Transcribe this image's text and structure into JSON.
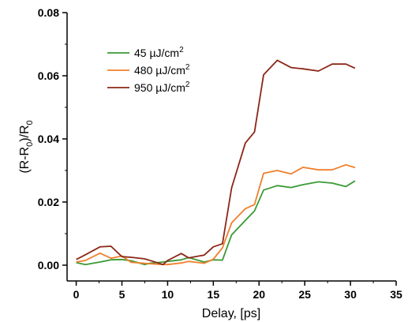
{
  "chart_data": {
    "type": "line",
    "xlabel": "Delay, [ps]",
    "ylabel": {
      "parts": [
        "(R-R",
        "0",
        ")/R",
        "0"
      ]
    },
    "xlim": [
      -1,
      35
    ],
    "ylim": [
      -0.005,
      0.08
    ],
    "xticks": [
      0,
      5,
      10,
      15,
      20,
      25,
      30,
      35
    ],
    "xtick_labels": [
      "0",
      "5",
      "10",
      "15",
      "20",
      "25",
      "30",
      "35"
    ],
    "yticks": [
      0.0,
      0.02,
      0.04,
      0.06,
      0.08
    ],
    "ytick_labels": [
      "0.00",
      "0.02",
      "0.04",
      "0.06",
      "0.08"
    ],
    "grid": false,
    "legend_position": "top-left",
    "series": [
      {
        "name": "45 µJ/cm",
        "name_sup": "2",
        "color": "#3a9a34",
        "x": [
          0,
          1,
          2.6,
          3.8,
          5,
          6,
          7.5,
          8,
          9.5,
          10,
          11.5,
          12.3,
          14,
          15,
          16,
          17,
          18.5,
          19.5,
          20.5,
          22,
          23.5,
          24.8,
          26.5,
          28,
          29.5,
          30.5
        ],
        "y": [
          0.0008,
          0.0002,
          0.001,
          0.0017,
          0.0018,
          0.0014,
          0.0002,
          0.0006,
          0.001,
          0.0012,
          0.0017,
          0.0024,
          0.001,
          0.0017,
          0.0016,
          0.0096,
          0.0142,
          0.0172,
          0.0238,
          0.0252,
          0.0246,
          0.0255,
          0.0264,
          0.026,
          0.0249,
          0.0267
        ]
      },
      {
        "name": "480 µJ/cm",
        "name_sup": "2",
        "color": "#f07f2c",
        "x": [
          0,
          1,
          2.6,
          3.8,
          5,
          6,
          7.5,
          8.3,
          9.5,
          10,
          11.5,
          12.3,
          14,
          15,
          16,
          17,
          18.5,
          19.5,
          20.5,
          22,
          23.5,
          24.8,
          26.5,
          28,
          29.5,
          30.5
        ],
        "y": [
          0.001,
          0.0015,
          0.0038,
          0.0022,
          0.0029,
          0.0009,
          0.0006,
          0.0004,
          0.0002,
          0.0002,
          0.0007,
          0.0012,
          0.0006,
          0.0019,
          0.0055,
          0.0134,
          0.0179,
          0.0192,
          0.0291,
          0.03,
          0.0289,
          0.031,
          0.0302,
          0.0302,
          0.0318,
          0.0309
        ]
      },
      {
        "name": "950 µJ/cm",
        "name_sup": "2",
        "color": "#8b2717",
        "x": [
          0,
          1,
          2.6,
          3.8,
          5,
          6,
          7.5,
          8.3,
          9.5,
          10,
          11.5,
          12.3,
          14,
          15,
          16,
          17,
          18.5,
          19.5,
          20.5,
          22,
          23.5,
          24.8,
          26.5,
          28,
          29.5,
          30.5
        ],
        "y": [
          0.0018,
          0.0033,
          0.0058,
          0.006,
          0.0027,
          0.0025,
          0.002,
          0.0013,
          0.0002,
          0.0015,
          0.0037,
          0.0023,
          0.0032,
          0.0058,
          0.0068,
          0.0245,
          0.0387,
          0.0422,
          0.0603,
          0.0649,
          0.0626,
          0.0622,
          0.0615,
          0.0637,
          0.0637,
          0.0624
        ]
      }
    ]
  }
}
